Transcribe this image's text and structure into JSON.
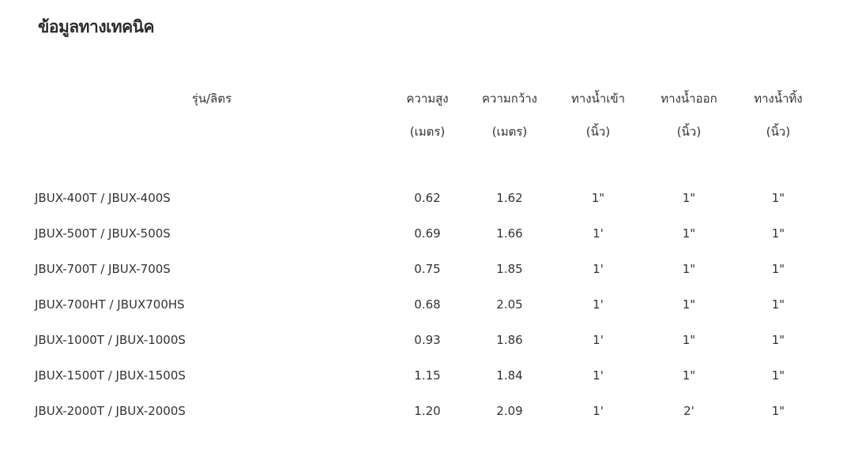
{
  "title": "ข้อมูลทางเทคนิค",
  "headers": {
    "model": "รุ่น/ลิตร",
    "columns": [
      {
        "label": "ความสูง",
        "unit": "(เมตร)"
      },
      {
        "label": "ความกว้าง",
        "unit": "(เมตร)"
      },
      {
        "label": "ทางน้ำเข้า",
        "unit": "(นิ้ว)"
      },
      {
        "label": "ทางน้ำออก",
        "unit": "(นิ้ว)"
      },
      {
        "label": "ทางน้ำทิ้ง",
        "unit": "(นิ้ว)"
      }
    ]
  },
  "rows": [
    {
      "model": "JBUX-400T  /  JBUX-400S",
      "height": "0.62",
      "width": "1.62",
      "inlet": "1\"",
      "outlet": "1\"",
      "drain": "1\""
    },
    {
      "model": "JBUX-500T  /  JBUX-500S",
      "height": "0.69",
      "width": "1.66",
      "inlet": "1'",
      "outlet": "1\"",
      "drain": "1\""
    },
    {
      "model": "JBUX-700T  /  JBUX-700S",
      "height": "0.75",
      "width": "1.85",
      "inlet": "1'",
      "outlet": "1\"",
      "drain": "1\""
    },
    {
      "model": "JBUX-700HT  /  JBUX700HS",
      "height": "0.68",
      "width": "2.05",
      "inlet": "1'",
      "outlet": "1\"",
      "drain": "1\""
    },
    {
      "model": "JBUX-1000T  /  JBUX-1000S",
      "height": "0.93",
      "width": "1.86",
      "inlet": "1'",
      "outlet": "1\"",
      "drain": "1\""
    },
    {
      "model": "JBUX-1500T  /  JBUX-1500S",
      "height": "1.15",
      "width": "1.84",
      "inlet": "1'",
      "outlet": "1\"",
      "drain": "1\""
    },
    {
      "model": "JBUX-2000T  /  JBUX-2000S",
      "height": "1.20",
      "width": "2.09",
      "inlet": "1'",
      "outlet": "2'",
      "drain": "1\""
    }
  ]
}
